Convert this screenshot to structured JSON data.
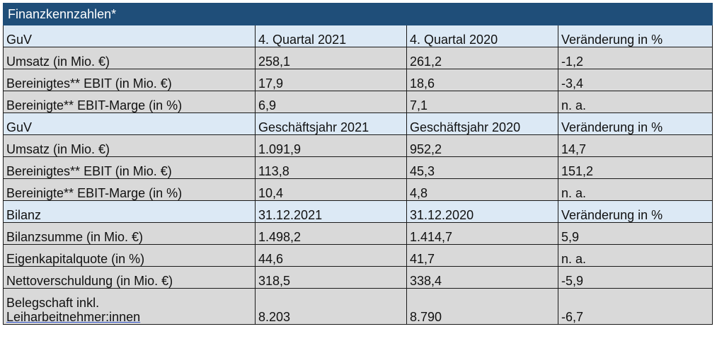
{
  "title": "Finanzkennzahlen*",
  "sections": [
    {
      "header": [
        "GuV",
        "4. Quartal 2021",
        "4. Quartal 2020",
        "Veränderung in %"
      ],
      "rows": [
        [
          "Umsatz (in Mio. €)",
          "258,1",
          "261,2",
          "-1,2"
        ],
        [
          "Bereinigtes** EBIT (in Mio. €)",
          "17,9",
          "18,6",
          "-3,4"
        ],
        [
          "Bereinigte** EBIT-Marge (in %)",
          "6,9",
          "7,1",
          "n. a."
        ]
      ]
    },
    {
      "header": [
        "GuV",
        "Geschäftsjahr 2021",
        "Geschäftsjahr 2020",
        "Veränderung in %"
      ],
      "rows": [
        [
          "Umsatz (in Mio. €)",
          "1.091,9",
          "952,2",
          "14,7"
        ],
        [
          "Bereinigtes** EBIT (in Mio. €)",
          "113,8",
          "45,3",
          "151,2"
        ],
        [
          "Bereinigte** EBIT-Marge (in %)",
          "10,4",
          "4,8",
          "n. a."
        ]
      ]
    },
    {
      "header": [
        "Bilanz",
        "31.12.2021",
        "31.12.2020",
        "Veränderung in %"
      ],
      "rows": [
        [
          "Bilanzsumme (in Mio. €)",
          "1.498,2",
          "1.414,7",
          "5,9"
        ],
        [
          "Eigenkapitalquote (in %)",
          "44,6",
          "41,7",
          "n. a."
        ],
        [
          "Nettoverschuldung (in Mio. €)",
          "318,5",
          "338,4",
          "-5,9"
        ]
      ]
    }
  ],
  "last_row": {
    "label_line1": "Belegschaft inkl.",
    "label_line2": "Leiharbeitnehmer:innen",
    "values": [
      "8.203",
      "8.790",
      "-6,7"
    ]
  }
}
